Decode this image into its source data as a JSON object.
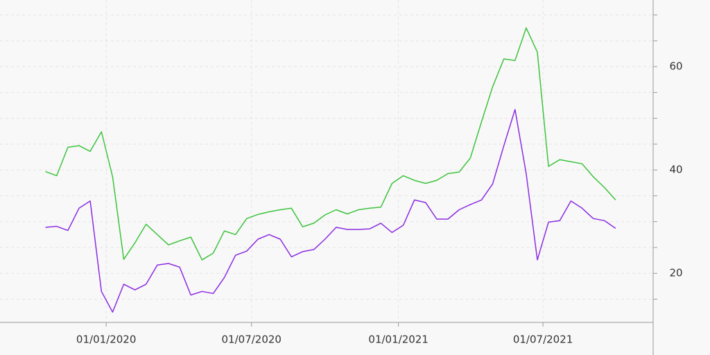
{
  "chart_data": {
    "type": "line",
    "x": [
      "2019-10-17",
      "2019-10-31",
      "2019-11-14",
      "2019-11-28",
      "2019-12-12",
      "2019-12-26",
      "2020-01-09",
      "2020-01-23",
      "2020-02-06",
      "2020-02-20",
      "2020-03-05",
      "2020-03-19",
      "2020-04-02",
      "2020-04-16",
      "2020-04-30",
      "2020-05-14",
      "2020-05-28",
      "2020-06-11",
      "2020-06-25",
      "2020-07-09",
      "2020-07-23",
      "2020-08-06",
      "2020-08-20",
      "2020-09-03",
      "2020-09-17",
      "2020-10-01",
      "2020-10-15",
      "2020-10-29",
      "2020-11-12",
      "2020-11-26",
      "2020-12-10",
      "2020-12-24",
      "2021-01-07",
      "2021-01-21",
      "2021-02-04",
      "2021-02-18",
      "2021-03-04",
      "2021-03-18",
      "2021-04-01",
      "2021-04-15",
      "2021-04-29",
      "2021-05-13",
      "2021-05-27",
      "2021-06-10",
      "2021-06-24",
      "2021-07-08",
      "2021-07-22",
      "2021-08-05",
      "2021-08-19",
      "2021-09-02",
      "2021-09-16",
      "2021-09-30"
    ],
    "series": [
      {
        "color": "#3cc23c",
        "values": [
          39.7,
          38.9,
          44.4,
          44.7,
          43.6,
          47.4,
          38.7,
          22.7,
          25.9,
          29.5,
          27.5,
          25.5,
          26.3,
          27.0,
          22.6,
          23.9,
          28.2,
          27.5,
          30.6,
          31.4,
          31.9,
          32.3,
          32.6,
          29.0,
          29.7,
          31.3,
          32.3,
          31.5,
          32.3,
          32.6,
          32.8,
          37.4,
          38.9,
          38.0,
          37.4,
          38.0,
          39.3,
          39.6,
          42.3,
          49.3,
          56.1,
          61.5,
          61.2,
          67.5,
          62.8,
          40.7,
          42.0,
          41.6,
          41.2,
          38.7,
          36.6,
          34.2
        ]
      },
      {
        "color": "#8a2be2",
        "values": [
          28.9,
          29.1,
          28.3,
          32.6,
          34.0,
          16.5,
          12.5,
          17.9,
          16.8,
          17.9,
          21.6,
          21.9,
          21.2,
          15.8,
          16.5,
          16.1,
          19.2,
          23.5,
          24.3,
          26.6,
          27.5,
          26.6,
          23.2,
          24.2,
          24.6,
          26.6,
          28.9,
          28.5,
          28.5,
          28.6,
          29.7,
          27.9,
          29.3,
          34.2,
          33.7,
          30.5,
          30.5,
          32.3,
          33.3,
          34.2,
          37.3,
          44.7,
          51.7,
          39.3,
          22.6,
          29.9,
          30.2,
          34.0,
          32.6,
          30.6,
          30.2,
          28.7
        ]
      }
    ],
    "xlim": [
      "2019-08-21",
      "2021-11-16"
    ],
    "xticks": [
      {
        "value": "2020-01-01",
        "label": "01/01/2020"
      },
      {
        "value": "2020-07-01",
        "label": "01/07/2020"
      },
      {
        "value": "2021-01-01",
        "label": "01/01/2021"
      },
      {
        "value": "2021-07-01",
        "label": "01/07/2021"
      }
    ],
    "ylim": [
      10.5,
      72.9
    ],
    "yticks": [
      20,
      40,
      60
    ],
    "minor_yticks": [
      15,
      25,
      30,
      35,
      45,
      50,
      55,
      65,
      70
    ],
    "y_axis_side": "right",
    "grid": true
  }
}
